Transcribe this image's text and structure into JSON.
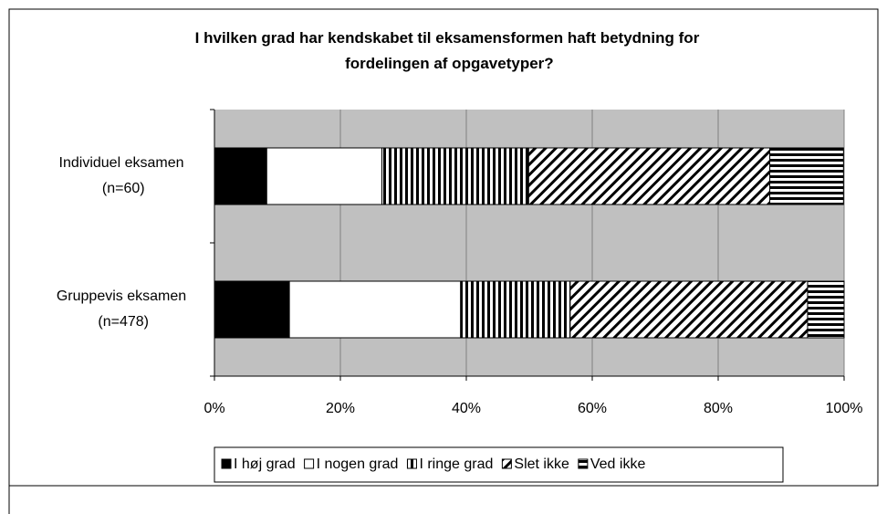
{
  "chart_data": {
    "type": "stacked-bar-horizontal",
    "title": "I hvilken grad har kendskabet til eksamensformen haft betydning for fordelingen af opgavetyper?",
    "categories": [
      "Individuel eksamen (n=60)",
      "Gruppevis eksamen (n=478)"
    ],
    "series": [
      {
        "name": "I høj grad",
        "color": "#000000",
        "pattern": "solid",
        "values": [
          8.3,
          11.9
        ]
      },
      {
        "name": "I nogen grad",
        "color": "#ffffff",
        "pattern": "solid",
        "values": [
          18.3,
          27.2
        ]
      },
      {
        "name": "I ringe grad",
        "color": "#000000",
        "pattern": "vertical",
        "values": [
          23.3,
          17.4
        ]
      },
      {
        "name": "Slet ikke",
        "color": "#000000",
        "pattern": "diagonal",
        "values": [
          38.3,
          37.7
        ]
      },
      {
        "name": "Ved ikke",
        "color": "#000000",
        "pattern": "horizontal",
        "values": [
          11.7,
          5.8
        ]
      }
    ],
    "xlim": [
      0,
      100
    ],
    "xticks": [
      {
        "value": 0,
        "label": "0%"
      },
      {
        "value": 20,
        "label": "20%"
      },
      {
        "value": 40,
        "label": "40%"
      },
      {
        "value": 60,
        "label": "60%"
      },
      {
        "value": 80,
        "label": "80%"
      },
      {
        "value": 100,
        "label": "100%"
      }
    ],
    "grid": true,
    "legend": "bottom"
  }
}
